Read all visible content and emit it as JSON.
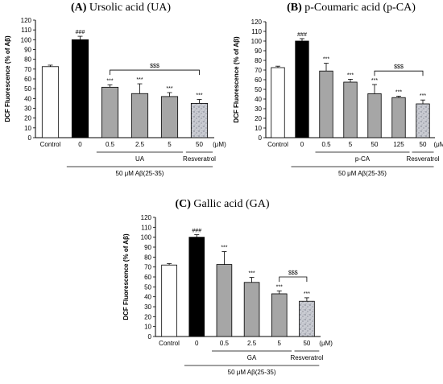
{
  "chart_data": [
    {
      "type": "bar",
      "panel_letter": "(A)",
      "panel_name": "Ursolic acid (UA)",
      "ylabel": "DCF Fluorescence (% of Aβ)",
      "ylim": [
        0,
        120
      ],
      "yticks": [
        "0",
        "10",
        "20",
        "30",
        "40",
        "50",
        "60",
        "70",
        "80",
        "90",
        "100",
        "110",
        "120"
      ],
      "categories": [
        "Control",
        "0",
        "0.5",
        "2.5",
        "5",
        "50"
      ],
      "unit_label": "(μM)",
      "values": [
        72.5,
        100,
        51.5,
        45,
        42,
        35
      ],
      "errors": [
        1.5,
        3.5,
        2.5,
        10,
        4,
        4
      ],
      "bar_styles": [
        "white",
        "black",
        "gray",
        "gray",
        "gray",
        "speckle"
      ],
      "significance": [
        "",
        "###",
        "***",
        "***",
        "***",
        "***"
      ],
      "group_labels": [
        {
          "text": "UA",
          "from": 2,
          "to": 4
        },
        {
          "text": "Resveratrol",
          "from": 5,
          "to": 5
        }
      ],
      "bottom_label": {
        "text": "50 μM Aβ(25-35)",
        "from": 1,
        "to": 5
      },
      "bracket": {
        "text": "$$$",
        "from": 2,
        "to": 5
      },
      "grid": false
    },
    {
      "type": "bar",
      "panel_letter": "(B)",
      "panel_name": "p-Coumaric acid (p-CA)",
      "ylabel": "DCF Fluorescence (% of Aβ)",
      "ylim": [
        0,
        120
      ],
      "yticks": [
        "0",
        "10",
        "20",
        "30",
        "40",
        "50",
        "60",
        "70",
        "80",
        "90",
        "100",
        "110",
        "120"
      ],
      "categories": [
        "Control",
        "0",
        "0.5",
        "5",
        "50",
        "125",
        "50"
      ],
      "unit_label": "(μM)",
      "values": [
        72.5,
        100,
        69,
        57.5,
        45.5,
        41.5,
        35
      ],
      "errors": [
        1.5,
        2.5,
        8,
        3,
        9.5,
        1.5,
        4
      ],
      "bar_styles": [
        "white",
        "black",
        "gray",
        "gray",
        "gray",
        "gray",
        "speckle"
      ],
      "significance": [
        "",
        "###",
        "***",
        "***",
        "***",
        "***",
        "***"
      ],
      "group_labels": [
        {
          "text": "p-CA",
          "from": 2,
          "to": 5
        },
        {
          "text": "Resveratrol",
          "from": 6,
          "to": 6
        }
      ],
      "bottom_label": {
        "text": "50 μM Aβ(25-35)",
        "from": 1,
        "to": 6
      },
      "bracket": {
        "text": "$$$",
        "from": 4,
        "to": 6
      },
      "grid": false
    },
    {
      "type": "bar",
      "panel_letter": "(C)",
      "panel_name": "Gallic acid (GA)",
      "ylabel": "DCF Fluorescence (% of Aβ)",
      "ylim": [
        0,
        120
      ],
      "yticks": [
        "0",
        "10",
        "20",
        "30",
        "40",
        "50",
        "60",
        "70",
        "80",
        "90",
        "100",
        "110",
        "120"
      ],
      "categories": [
        "Control",
        "0",
        "0.5",
        "2.5",
        "5",
        "50"
      ],
      "unit_label": "(μM)",
      "values": [
        72,
        100,
        72.5,
        54.5,
        43,
        35.5
      ],
      "errors": [
        1.5,
        2.5,
        13,
        5,
        3,
        3.5
      ],
      "bar_styles": [
        "white",
        "black",
        "gray",
        "gray",
        "gray",
        "speckle"
      ],
      "significance": [
        "",
        "###",
        "***",
        "***",
        "***",
        "***"
      ],
      "group_labels": [
        {
          "text": "GA",
          "from": 2,
          "to": 4
        },
        {
          "text": "Resveratrol",
          "from": 5,
          "to": 5
        }
      ],
      "bottom_label": {
        "text": "50 μM Aβ(25-35)",
        "from": 1,
        "to": 5
      },
      "bracket": {
        "text": "$$$",
        "from": 4,
        "to": 5
      },
      "grid": false
    }
  ],
  "colors": {
    "white_bar": "#ffffff",
    "black_bar": "#000000",
    "gray_bar": "#a6a6a6",
    "speckle_bar": "#c9cbd2",
    "speckle_dots": "#6e7280",
    "axis": "#000000"
  }
}
